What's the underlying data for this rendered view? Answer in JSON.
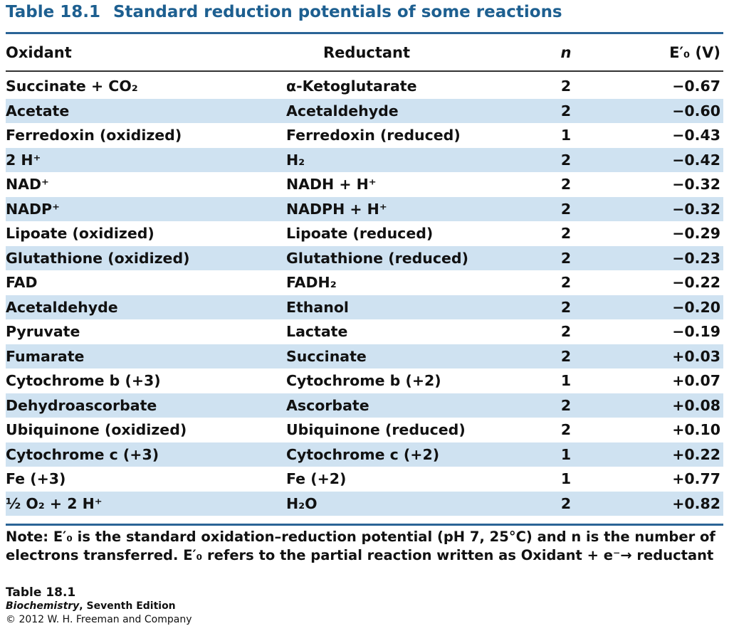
{
  "title": {
    "number": "Table 18.1",
    "text": "Standard reduction potentials of some reactions"
  },
  "columns": {
    "oxidant": "Oxidant",
    "reductant": "Reductant",
    "n": "n",
    "e0": "E′₀ (V)"
  },
  "rows": [
    {
      "oxidant": "Succinate + CO₂",
      "reductant": "α-Ketoglutarate",
      "n": "2",
      "e0": "−0.67"
    },
    {
      "oxidant": "Acetate",
      "reductant": "Acetaldehyde",
      "n": "2",
      "e0": "−0.60"
    },
    {
      "oxidant": "Ferredoxin (oxidized)",
      "reductant": "Ferredoxin (reduced)",
      "n": "1",
      "e0": "−0.43"
    },
    {
      "oxidant": "2 H⁺",
      "reductant": "H₂",
      "n": "2",
      "e0": "−0.42"
    },
    {
      "oxidant": "NAD⁺",
      "reductant": "NADH + H⁺",
      "n": "2",
      "e0": "−0.32"
    },
    {
      "oxidant": "NADP⁺",
      "reductant": "NADPH + H⁺",
      "n": "2",
      "e0": "−0.32"
    },
    {
      "oxidant": "Lipoate (oxidized)",
      "reductant": "Lipoate (reduced)",
      "n": "2",
      "e0": "−0.29"
    },
    {
      "oxidant": "Glutathione (oxidized)",
      "reductant": "Glutathione (reduced)",
      "n": "2",
      "e0": "−0.23"
    },
    {
      "oxidant": "FAD",
      "reductant": "FADH₂",
      "n": "2",
      "e0": "−0.22"
    },
    {
      "oxidant": "Acetaldehyde",
      "reductant": "Ethanol",
      "n": "2",
      "e0": "−0.20"
    },
    {
      "oxidant": "Pyruvate",
      "reductant": "Lactate",
      "n": "2",
      "e0": "−0.19"
    },
    {
      "oxidant": "Fumarate",
      "reductant": "Succinate",
      "n": "2",
      "e0": "+0.03"
    },
    {
      "oxidant": "Cytochrome b (+3)",
      "reductant": "Cytochrome b (+2)",
      "n": "1",
      "e0": "+0.07"
    },
    {
      "oxidant": "Dehydroascorbate",
      "reductant": "Ascorbate",
      "n": "2",
      "e0": "+0.08"
    },
    {
      "oxidant": "Ubiquinone (oxidized)",
      "reductant": "Ubiquinone (reduced)",
      "n": "2",
      "e0": "+0.10"
    },
    {
      "oxidant": "Cytochrome c (+3)",
      "reductant": "Cytochrome c (+2)",
      "n": "1",
      "e0": "+0.22"
    },
    {
      "oxidant": "Fe (+3)",
      "reductant": "Fe (+2)",
      "n": "1",
      "e0": "+0.77"
    },
    {
      "oxidant": "½ O₂ + 2 H⁺",
      "reductant": "H₂O",
      "n": "2",
      "e0": "+0.82"
    }
  ],
  "note": "Note: E′₀ is the standard oxidation–reduction potential (pH 7, 25°C) and n is the number of electrons transferred. E′₀ refers to the partial reaction written as Oxidant + e⁻→ reductant",
  "caption": {
    "table": "Table 18.1",
    "book": "Biochemistry",
    "edition": ", Seventh Edition",
    "copyright": "© 2012 W. H. Freeman and Company"
  }
}
